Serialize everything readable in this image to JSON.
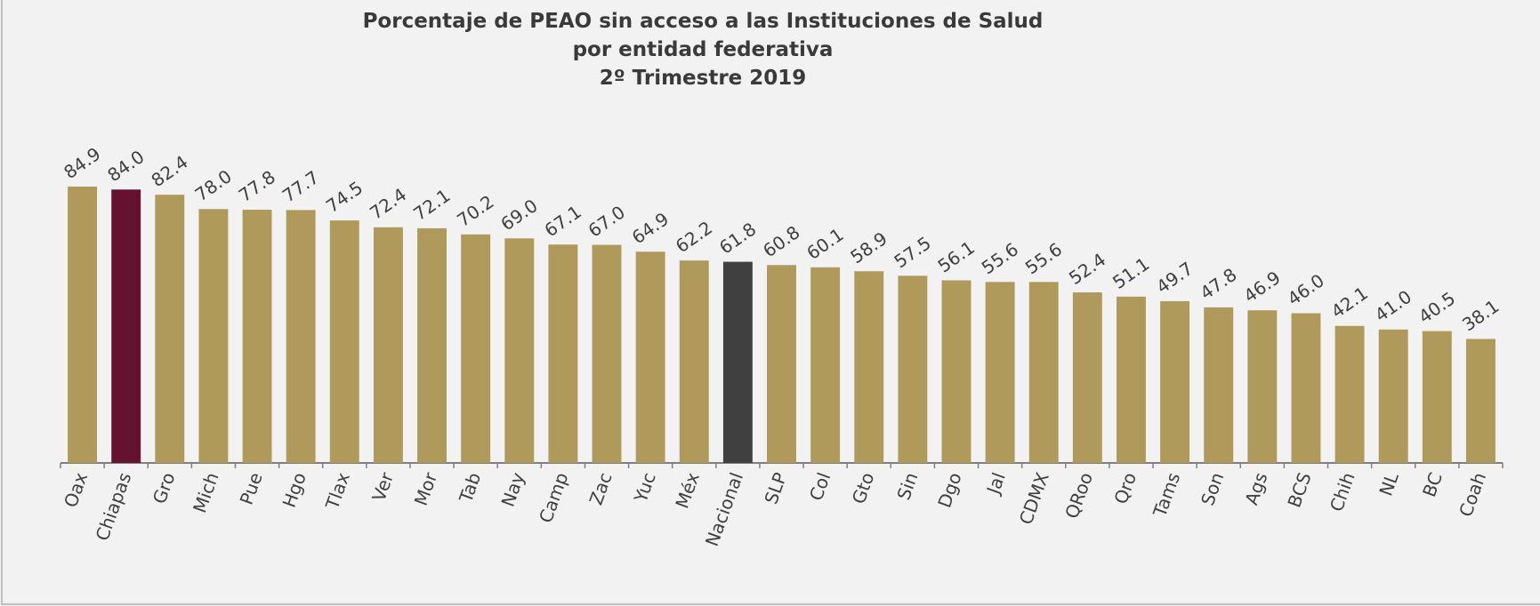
{
  "chart_data": {
    "type": "bar",
    "title": [
      "Porcentaje de PEAO sin acceso a las Instituciones de Salud",
      "por entidad federativa",
      "2º Trimestre 2019"
    ],
    "categories": [
      "Oax",
      "Chiapas",
      "Gro",
      "Mich",
      "Pue",
      "Hgo",
      "Tlax",
      "Ver",
      "Mor",
      "Tab",
      "Nay",
      "Camp",
      "Zac",
      "Yuc",
      "Méx",
      "Nacional",
      "SLP",
      "Col",
      "Gto",
      "Sin",
      "Dgo",
      "Jal",
      "CDMX",
      "QRoo",
      "Qro",
      "Tams",
      "Son",
      "Ags",
      "BCS",
      "Chih",
      "NL",
      "BC",
      "Coah"
    ],
    "values": [
      84.9,
      84.0,
      82.4,
      78.0,
      77.8,
      77.7,
      74.5,
      72.4,
      72.1,
      70.2,
      69.0,
      67.1,
      67.0,
      64.9,
      62.2,
      61.8,
      60.8,
      60.1,
      58.9,
      57.5,
      56.1,
      55.6,
      55.6,
      52.4,
      51.1,
      49.7,
      47.8,
      46.9,
      46.0,
      42.1,
      41.0,
      40.5,
      38.1
    ],
    "value_labels": [
      "84.9",
      "84.0",
      "82.4",
      "78.0",
      "77.8",
      "77.7",
      "74.5",
      "72.4",
      "72.1",
      "70.2",
      "69.0",
      "67.1",
      "67.0",
      "64.9",
      "62.2",
      "61.8",
      "60.8",
      "60.1",
      "58.9",
      "57.5",
      "56.1",
      "55.6",
      "55.6",
      "52.4",
      "51.1",
      "49.7",
      "47.8",
      "46.9",
      "46.0",
      "42.1",
      "41.0",
      "40.5",
      "38.1"
    ],
    "colors": [
      "#b09a5b",
      "#651230",
      "#b09a5b",
      "#b09a5b",
      "#b09a5b",
      "#b09a5b",
      "#b09a5b",
      "#b09a5b",
      "#b09a5b",
      "#b09a5b",
      "#b09a5b",
      "#b09a5b",
      "#b09a5b",
      "#b09a5b",
      "#b09a5b",
      "#404040",
      "#b09a5b",
      "#b09a5b",
      "#b09a5b",
      "#b09a5b",
      "#b09a5b",
      "#b09a5b",
      "#b09a5b",
      "#b09a5b",
      "#b09a5b",
      "#b09a5b",
      "#b09a5b",
      "#b09a5b",
      "#b09a5b",
      "#b09a5b",
      "#b09a5b",
      "#b09a5b",
      "#b09a5b"
    ]
  }
}
